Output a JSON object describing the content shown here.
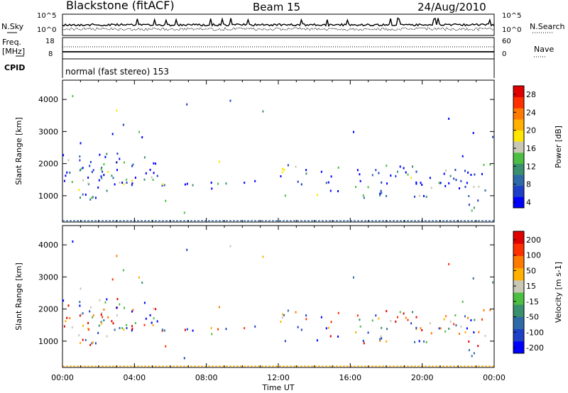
{
  "header": {
    "title": "Blackstone (fitACF)",
    "beam": "Beam 15",
    "date": "24/Aug/2010"
  },
  "top_panels": {
    "nsky_label": "N.Sky",
    "nsky_ticks": [
      "10^5",
      "10^0"
    ],
    "nsearch_label": "N.Search",
    "nsearch_ticks": [
      "10^5",
      "10^0"
    ],
    "freq_label_line1": "Freq.",
    "freq_label_line2": "[MHz]",
    "freq_ticks": [
      "18",
      "8"
    ],
    "nave_label": "Nave",
    "nave_ticks": [
      "60",
      "0"
    ],
    "cpid_label": "CPID",
    "cpid_value": "normal (fast stereo) 153"
  },
  "chart_data": [
    {
      "type": "heatmap",
      "title": "",
      "xlabel": "",
      "ylabel": "Slant Range [km]",
      "ylim": [
        180,
        4600
      ],
      "yticks": [
        "4000",
        "3000",
        "2000",
        "1000"
      ],
      "xlim": [
        "00:00",
        "24:00"
      ],
      "colorbar": {
        "label": "Power [dB]",
        "ticks": [
          "28",
          "24",
          "20",
          "16",
          "12",
          "8",
          "4"
        ],
        "colors": [
          "#0000ff",
          "#1e3fc8",
          "#2f6aa8",
          "#3a8f6e",
          "#4cbf42",
          "#c8c8b4",
          "#ffe600",
          "#ffb000",
          "#ff7a00",
          "#ff3000",
          "#e00000"
        ]
      }
    },
    {
      "type": "heatmap",
      "title": "",
      "xlabel": "Time UT",
      "ylabel": "Slant Range [km]",
      "ylim": [
        180,
        4600
      ],
      "yticks": [
        "4000",
        "3000",
        "2000",
        "1000"
      ],
      "xticks": [
        "00:00",
        "04:00",
        "08:00",
        "12:00",
        "16:00",
        "20:00",
        "00:00"
      ],
      "colorbar": {
        "label": "Velocity [m s-1]",
        "ticks": [
          "200",
          "100",
          "50",
          "15",
          "-15",
          "-50",
          "-100",
          "-200"
        ],
        "colors": [
          "#0000ff",
          "#1e3fc8",
          "#2f6aa8",
          "#3a8f6e",
          "#4cbf42",
          "#c8c8b4",
          "#ffb000",
          "#ff7a00",
          "#ff3000",
          "#e00000"
        ]
      }
    }
  ],
  "x_axis": {
    "label": "Time UT",
    "ticks": [
      "00:00",
      "04:00",
      "08:00",
      "12:00",
      "16:00",
      "20:00",
      "00:00"
    ]
  }
}
